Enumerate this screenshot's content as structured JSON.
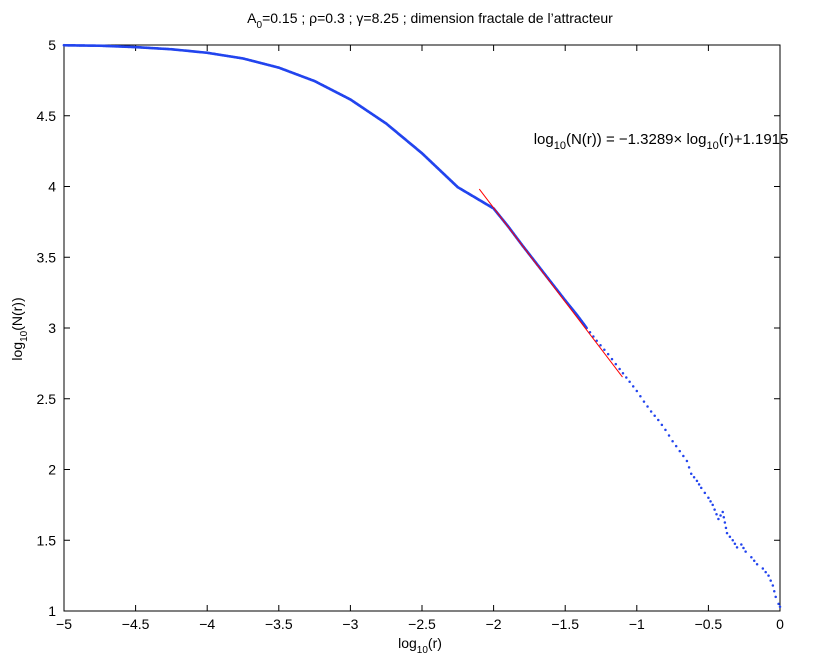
{
  "chart_data": {
    "type": "scatter",
    "title": {
      "prefix": "A",
      "prefix_sub": "0",
      "rest": "=0.15 ; ρ=0.3 ; γ=8.25 ; dimension fractale de l’attracteur"
    },
    "xlabel": {
      "main": "log",
      "sub": "10",
      "tail": "(r)"
    },
    "ylabel": {
      "main": "log",
      "sub": "10",
      "tail": "(N(r))"
    },
    "xlim": [
      -5,
      0
    ],
    "ylim": [
      1,
      5
    ],
    "xticks": [
      -5,
      -4.5,
      -4,
      -3.5,
      -3,
      -2.5,
      -2,
      -1.5,
      -1,
      -0.5,
      0
    ],
    "xtick_labels": [
      "−5",
      "−4.5",
      "−4",
      "−3.5",
      "−3",
      "−2.5",
      "−2",
      "−1.5",
      "−1",
      "−0.5",
      "0"
    ],
    "yticks": [
      1,
      1.5,
      2,
      2.5,
      3,
      3.5,
      4,
      4.5,
      5
    ],
    "ytick_labels": [
      "1",
      "1.5",
      "2",
      "2.5",
      "3",
      "3.5",
      "4",
      "4.5",
      "5"
    ],
    "grid": false,
    "annotation": {
      "p1": "log",
      "s1": "10",
      "p2": "(N(r)) = −1.3289× log",
      "s2": "10",
      "p3": "(r)+1.1915",
      "x": -1.72,
      "y": 4.3
    },
    "fit": {
      "slope": -1.3289,
      "intercept": 1.1915,
      "x_range": [
        -2.1,
        -1.1
      ],
      "color": "#ff0000"
    },
    "series": [
      {
        "color": "#2244ee",
        "points": [
          [
            -5.0,
            4.998
          ],
          [
            -4.75,
            4.995
          ],
          [
            -4.5,
            4.985
          ],
          [
            -4.25,
            4.97
          ],
          [
            -4.0,
            4.945
          ],
          [
            -3.75,
            4.905
          ],
          [
            -3.5,
            4.84
          ],
          [
            -3.25,
            4.745
          ],
          [
            -3.0,
            4.615
          ],
          [
            -2.75,
            4.445
          ],
          [
            -2.5,
            4.235
          ],
          [
            -2.25,
            3.995
          ],
          [
            -2.0,
            3.845
          ],
          [
            -1.9,
            3.72
          ],
          [
            -1.8,
            3.585
          ],
          [
            -1.7,
            3.455
          ],
          [
            -1.6,
            3.325
          ],
          [
            -1.5,
            3.195
          ],
          [
            -1.42,
            3.095
          ],
          [
            -1.35,
            3.0
          ],
          [
            -1.28,
            2.91
          ],
          [
            -1.2,
            2.815
          ],
          [
            -1.12,
            2.71
          ],
          [
            -1.05,
            2.62
          ],
          [
            -1.0,
            2.555
          ],
          [
            -0.95,
            2.48
          ],
          [
            -0.9,
            2.41
          ],
          [
            -0.85,
            2.35
          ],
          [
            -0.8,
            2.28
          ],
          [
            -0.75,
            2.2
          ],
          [
            -0.7,
            2.13
          ],
          [
            -0.65,
            2.06
          ],
          [
            -0.62,
            1.97
          ],
          [
            -0.58,
            1.92
          ],
          [
            -0.55,
            1.87
          ],
          [
            -0.5,
            1.8
          ],
          [
            -0.47,
            1.75
          ],
          [
            -0.43,
            1.65
          ],
          [
            -0.4,
            1.7
          ],
          [
            -0.37,
            1.55
          ],
          [
            -0.33,
            1.5
          ],
          [
            -0.3,
            1.45
          ],
          [
            -0.27,
            1.47
          ],
          [
            -0.24,
            1.42
          ],
          [
            -0.2,
            1.38
          ],
          [
            -0.16,
            1.33
          ],
          [
            -0.12,
            1.3
          ],
          [
            -0.08,
            1.25
          ],
          [
            -0.05,
            1.18
          ],
          [
            -0.03,
            1.1
          ],
          [
            -0.01,
            1.05
          ],
          [
            0.0,
            1.03
          ]
        ]
      }
    ]
  }
}
